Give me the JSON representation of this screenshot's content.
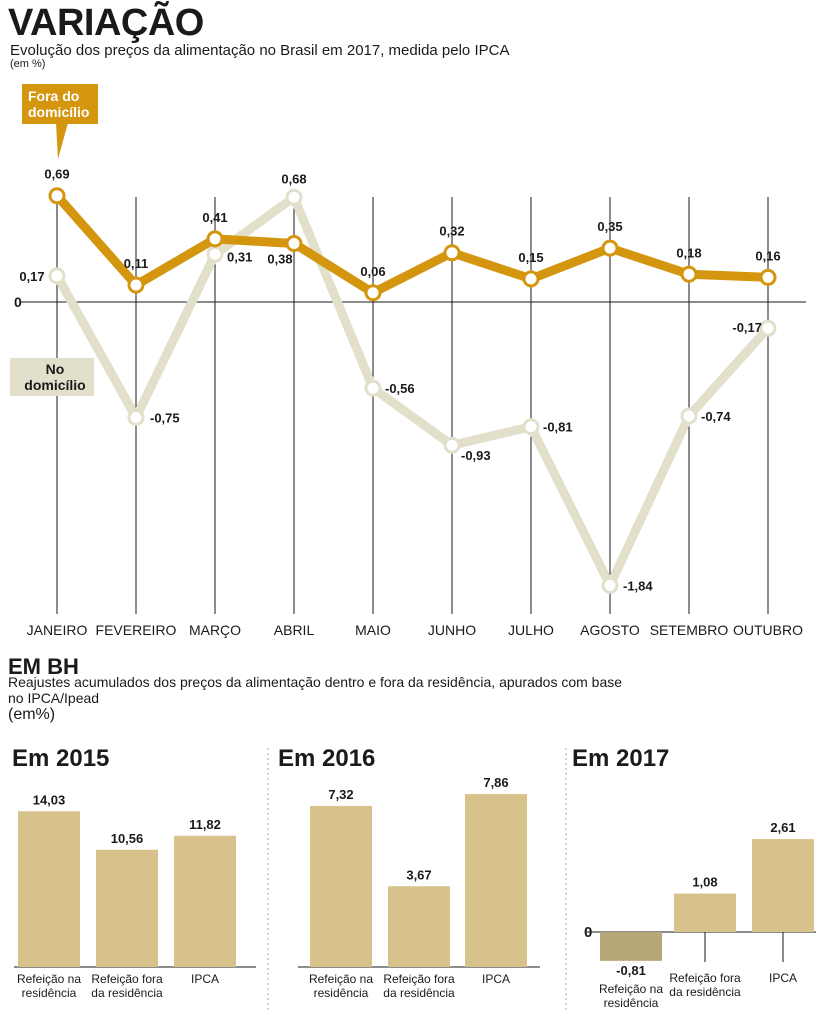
{
  "header": {
    "title": "VARIAÇÃO",
    "subtitle": "Evolução dos preços da alimentação no Brasil em 2017, medida pelo IPCA",
    "unit": "(em %)"
  },
  "legend": {
    "fora": "Fora do domicílio",
    "no": "No domicílio"
  },
  "colors": {
    "fora": "#d4950f",
    "no": "#e2dfcb",
    "bar": "#d6c28a",
    "bar_negative": "#b6a678"
  },
  "chart_data": [
    {
      "type": "line",
      "title": "VARIAÇÃO",
      "subtitle": "Evolução dos preços da alimentação no Brasil em 2017, medida pelo IPCA",
      "categories": [
        "JANEIRO",
        "FEVEREIRO",
        "MARÇO",
        "ABRIL",
        "MAIO",
        "JUNHO",
        "JULHO",
        "AGOSTO",
        "SETEMBRO",
        "OUTUBRO"
      ],
      "series": [
        {
          "name": "Fora do domicílio",
          "values": [
            0.69,
            0.11,
            0.41,
            0.38,
            0.06,
            0.32,
            0.15,
            0.35,
            0.18,
            0.16
          ],
          "labels": [
            "0,69",
            "0,11",
            "0,41",
            "0,38",
            "0,06",
            "0,32",
            "0,15",
            "0,35",
            "0,18",
            "0,16"
          ]
        },
        {
          "name": "No domicílio",
          "values": [
            0.17,
            -0.75,
            0.31,
            0.68,
            -0.56,
            -0.93,
            -0.81,
            -1.84,
            -0.74,
            -0.17
          ],
          "labels": [
            "0,17",
            "-0,75",
            "0,31",
            "0,68",
            "-0,56",
            "-0,93",
            "-0,81",
            "-1,84",
            "-0,74",
            "-0,17"
          ]
        }
      ],
      "zero_label": "0"
    },
    {
      "type": "bar",
      "title": "Em 2015",
      "categories": [
        "Refeição na residência",
        "Refeição fora da residência",
        "IPCA"
      ],
      "values": [
        14.03,
        10.56,
        11.82
      ],
      "labels": [
        "14,03",
        "10,56",
        "11,82"
      ]
    },
    {
      "type": "bar",
      "title": "Em 2016",
      "categories": [
        "Refeição na residência",
        "Refeição fora da residência",
        "IPCA"
      ],
      "values": [
        7.32,
        3.67,
        7.86
      ],
      "labels": [
        "7,32",
        "3,67",
        "7,86"
      ]
    },
    {
      "type": "bar",
      "title": "Em 2017",
      "categories": [
        "Refeição na residência",
        "Refeição fora da residência",
        "IPCA"
      ],
      "values": [
        -0.81,
        1.08,
        2.61
      ],
      "labels": [
        "-0,81",
        "1,08",
        "2,61"
      ],
      "zero_label": "0"
    }
  ],
  "section2": {
    "title": "EM BH",
    "subtitle": "Reajustes acumulados dos preços da alimentação dentro e fora da residência, apurados com base no IPCA/Ipead",
    "unit": "(em%)"
  }
}
